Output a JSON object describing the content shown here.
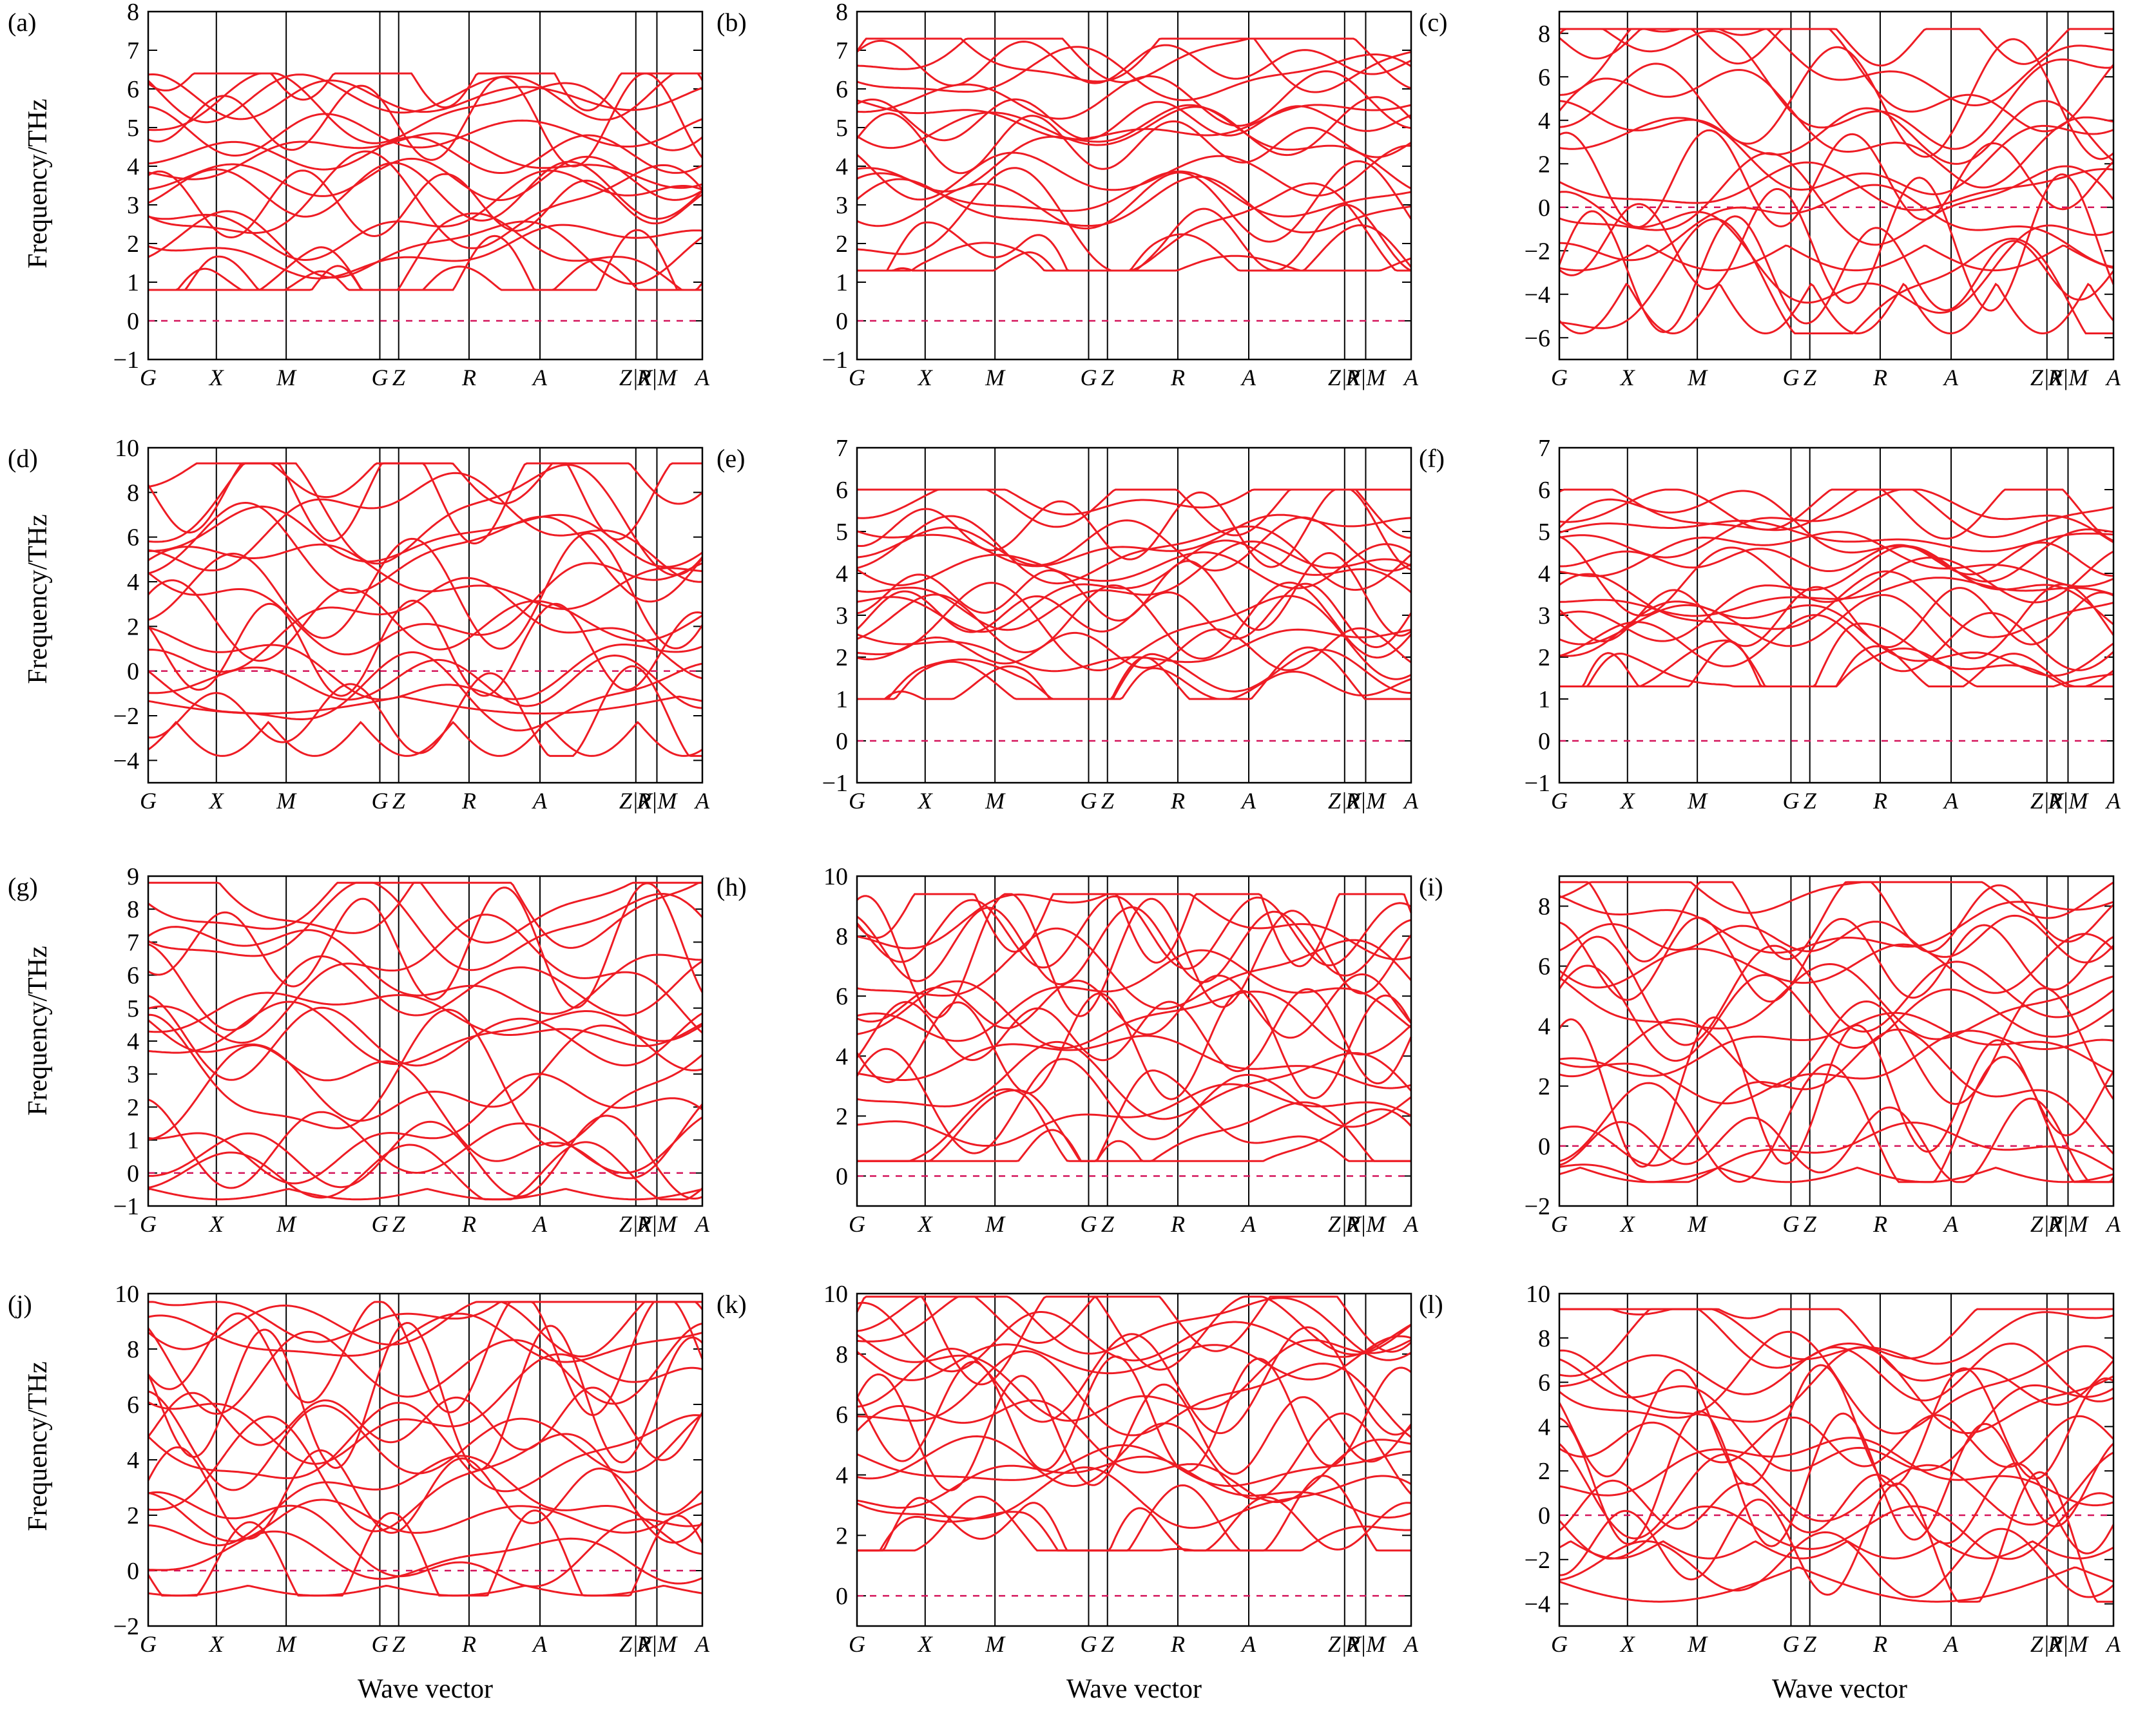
{
  "labels": {
    "ylabel": "Frequency/THz",
    "xlabel": "Wave vector",
    "kpath": [
      "G",
      "X",
      "M",
      "G",
      "Z",
      "R",
      "A",
      "Z|X",
      "R|M",
      "A"
    ]
  },
  "colors": {
    "band": "#ee1c24",
    "zero_line": "#d4145a",
    "axis": "#000000"
  },
  "chart_data": [
    {
      "panel": "(a)",
      "type": "line",
      "ylim": [
        -1,
        8
      ],
      "yticks": [
        -1,
        0,
        1,
        2,
        3,
        4,
        5,
        6,
        7,
        8
      ],
      "nbands": 18,
      "min": 0.8,
      "max": 6.4,
      "neg": 0,
      "gap": 0,
      "seed": 1
    },
    {
      "panel": "(b)",
      "type": "line",
      "ylim": [
        -1,
        8
      ],
      "yticks": [
        -1,
        0,
        1,
        2,
        3,
        4,
        5,
        6,
        7,
        8
      ],
      "nbands": 18,
      "min": 1.3,
      "max": 7.3,
      "neg": 0,
      "gap": 0,
      "seed": 2
    },
    {
      "panel": "(c)",
      "type": "line",
      "ylim": [
        -7,
        9
      ],
      "yticks": [
        -6,
        -4,
        -2,
        0,
        2,
        4,
        6,
        8
      ],
      "nbands": 18,
      "min": -5.8,
      "max": 8.2,
      "neg": 2,
      "gap": 0,
      "seed": 3
    },
    {
      "panel": "(d)",
      "type": "line",
      "ylim": [
        -5,
        10
      ],
      "yticks": [
        -4,
        -2,
        0,
        2,
        4,
        6,
        8,
        10
      ],
      "nbands": 18,
      "min": -3.8,
      "max": 9.3,
      "neg": 2,
      "gap": 0,
      "seed": 4
    },
    {
      "panel": "(e)",
      "type": "line",
      "ylim": [
        -1,
        7
      ],
      "yticks": [
        -1,
        0,
        1,
        2,
        3,
        4,
        5,
        6,
        7
      ],
      "nbands": 18,
      "min": 1.0,
      "max": 6.0,
      "neg": 0,
      "gap": 0,
      "seed": 5
    },
    {
      "panel": "(f)",
      "type": "line",
      "ylim": [
        -1,
        7
      ],
      "yticks": [
        -1,
        0,
        1,
        2,
        3,
        4,
        5,
        6,
        7
      ],
      "nbands": 18,
      "min": 1.3,
      "max": 6.0,
      "neg": 0,
      "gap": 0,
      "seed": 6
    },
    {
      "panel": "(g)",
      "type": "line",
      "ylim": [
        -1,
        9
      ],
      "yticks": [
        -1,
        0,
        1,
        2,
        3,
        4,
        5,
        6,
        7,
        8,
        9
      ],
      "nbands": 18,
      "min": -0.8,
      "max": 8.8,
      "neg": 1,
      "gap": 0,
      "seed": 7
    },
    {
      "panel": "(h)",
      "type": "line",
      "ylim": [
        -1,
        10
      ],
      "yticks": [
        0,
        2,
        4,
        6,
        8,
        10
      ],
      "nbands": 18,
      "min": 0.5,
      "max": 9.4,
      "neg": 0,
      "gap": 0,
      "seed": 8
    },
    {
      "panel": "(i)",
      "type": "line",
      "ylim": [
        -2,
        9
      ],
      "yticks": [
        -2,
        0,
        2,
        4,
        6,
        8
      ],
      "nbands": 18,
      "min": -1.2,
      "max": 8.8,
      "neg": 1,
      "gap": 0,
      "seed": 9
    },
    {
      "panel": "(j)",
      "type": "line",
      "ylim": [
        -2,
        10
      ],
      "yticks": [
        -2,
        0,
        2,
        4,
        6,
        8,
        10
      ],
      "nbands": 18,
      "min": -0.9,
      "max": 9.7,
      "neg": 1,
      "gap": 0,
      "seed": 10
    },
    {
      "panel": "(k)",
      "type": "line",
      "ylim": [
        -1,
        10
      ],
      "yticks": [
        0,
        2,
        4,
        6,
        8,
        10
      ],
      "nbands": 18,
      "min": 1.5,
      "max": 9.9,
      "neg": 0,
      "gap": 0,
      "seed": 11
    },
    {
      "panel": "(l)",
      "type": "line",
      "ylim": [
        -5,
        10
      ],
      "yticks": [
        -4,
        -2,
        0,
        2,
        4,
        6,
        8,
        10
      ],
      "nbands": 18,
      "min": -3.9,
      "max": 9.3,
      "neg": 2,
      "gap": 0,
      "seed": 12
    }
  ]
}
